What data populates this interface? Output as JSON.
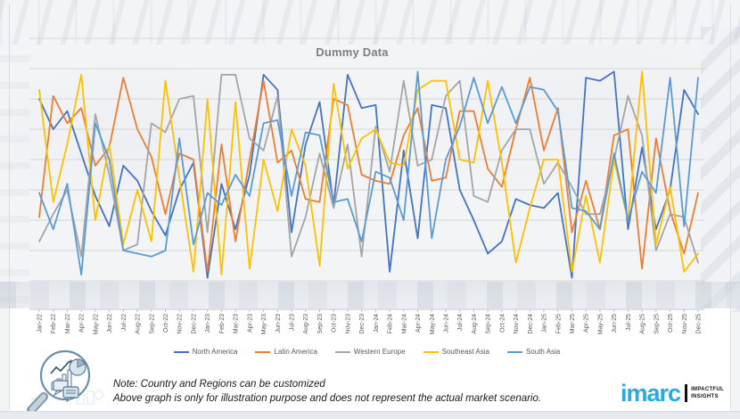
{
  "title": "Dummy Data",
  "note": {
    "line1": "Note: Country and Regions can be customized",
    "line2": "Above graph is only for illustration purpose and does not represent the actual market scenario."
  },
  "logo": {
    "word": "imarc",
    "tagline_line1": "IMPACTFUL",
    "tagline_line2": "INSIGHTS",
    "brand_color": "#29ABE2"
  },
  "chart_data": {
    "type": "line",
    "title": "Dummy Data",
    "xlabel": "",
    "ylabel": "",
    "grid": true,
    "y_axis_labels_visible": false,
    "ylim": [
      0,
      80
    ],
    "gridline_interval": 10,
    "legend_position": "bottom",
    "categories": [
      "Jan-22",
      "Feb-22",
      "Mar-22",
      "Apr-22",
      "May-22",
      "Jun-22",
      "Jul-22",
      "Aug-22",
      "Sep-22",
      "Oct-22",
      "Nov-22",
      "Dec-22",
      "Jan-23",
      "Feb-23",
      "Mar-23",
      "Apr-23",
      "May-23",
      "Jun-23",
      "Jul-23",
      "Aug-23",
      "Sep-23",
      "Oct-23",
      "Nov-23",
      "Dec-23",
      "Jan-24",
      "Feb-24",
      "Mar-24",
      "Apr-24",
      "May-24",
      "Jun-24",
      "Jul-24",
      "Aug-24",
      "Sep-24",
      "Oct-24",
      "Nov-24",
      "Dec-24",
      "Jan-25",
      "Feb-25",
      "Mar-25",
      "Apr-25",
      "May-25",
      "Jun-25",
      "Jul-25",
      "Aug-25",
      "Sep-25",
      "Oct-25",
      "Nov-25",
      "Dec-25"
    ],
    "series": [
      {
        "name": "North America",
        "color": "#4472C4",
        "values": [
          60,
          50,
          56,
          42,
          28,
          18,
          38,
          33,
          23,
          15,
          30,
          39,
          1,
          32,
          17,
          35,
          68,
          63,
          16,
          45,
          59,
          25,
          68,
          57,
          58,
          3,
          43,
          14,
          58,
          57,
          30,
          20,
          9,
          13,
          27,
          25,
          24,
          29,
          1,
          67,
          66,
          69,
          17,
          44,
          17,
          30,
          63,
          55
        ]
      },
      {
        "name": "Latin America",
        "color": "#ED7D31",
        "values": [
          21,
          61,
          52,
          57,
          38,
          44,
          67,
          50,
          41,
          22,
          42,
          40,
          3,
          45,
          13,
          40,
          66,
          39,
          43,
          27,
          26,
          60,
          58,
          35,
          33,
          32,
          48,
          57,
          33,
          34,
          56,
          56,
          37,
          31,
          50,
          67,
          43,
          57,
          16,
          33,
          17,
          48,
          50,
          4,
          47,
          23,
          9,
          29
        ]
      },
      {
        "name": "Western Europe",
        "color": "#A5A5A5",
        "values": [
          13,
          22,
          30,
          8,
          55,
          35,
          10,
          12,
          52,
          49,
          60,
          61,
          16,
          68,
          68,
          47,
          43,
          61,
          8,
          21,
          42,
          24,
          45,
          8,
          51,
          36,
          66,
          38,
          40,
          61,
          66,
          28,
          26,
          43,
          50,
          50,
          32,
          39,
          31,
          22,
          22,
          40,
          61,
          48,
          10,
          22,
          21,
          6
        ]
      },
      {
        "name": "Southeast Asia",
        "color": "#FFC000",
        "values": [
          63,
          26,
          45,
          68,
          20,
          45,
          12,
          30,
          13,
          66,
          34,
          3,
          60,
          2,
          59,
          4,
          40,
          23,
          50,
          38,
          5,
          65,
          37,
          47,
          50,
          39,
          38,
          63,
          66,
          66,
          40,
          39,
          66,
          39,
          6,
          24,
          40,
          40,
          3,
          28,
          6,
          40,
          20,
          69,
          12,
          31,
          3,
          9
        ]
      },
      {
        "name": "South Asia",
        "color": "#5B9BD5",
        "values": [
          29,
          17,
          32,
          2,
          52,
          40,
          10,
          9,
          8,
          10,
          47,
          12,
          29,
          25,
          35,
          28,
          52,
          53,
          28,
          49,
          48,
          26,
          27,
          13,
          36,
          34,
          20,
          69,
          14,
          40,
          51,
          67,
          52,
          64,
          52,
          64,
          63,
          56,
          24,
          23,
          17,
          42,
          20,
          36,
          29,
          67,
          18,
          67
        ]
      }
    ]
  }
}
